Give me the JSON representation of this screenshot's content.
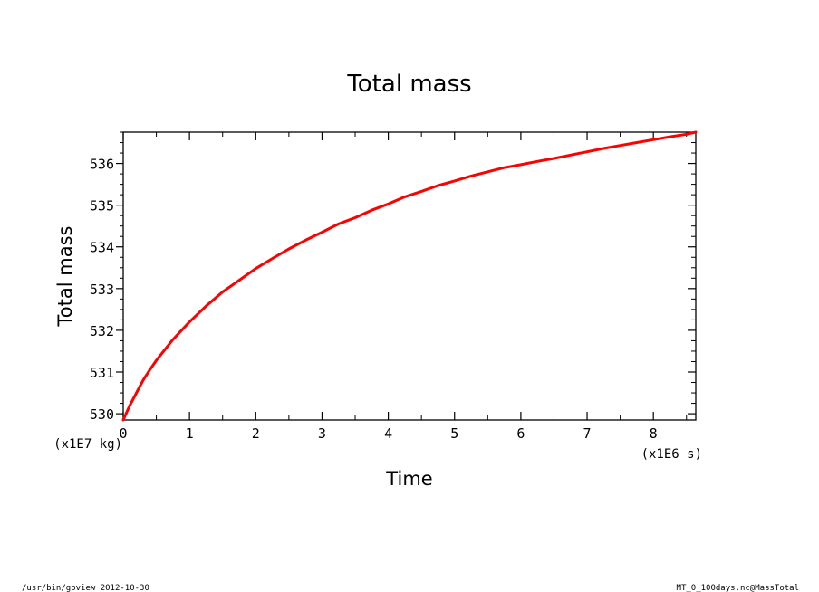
{
  "chart_data": {
    "type": "line",
    "title": "Total mass",
    "xlabel": "Time",
    "ylabel": "Total mass",
    "x_unit": "(x1E6 s)",
    "y_unit": "(x1E7 kg)",
    "xlim": [
      0,
      8.64
    ],
    "ylim": [
      529.85,
      536.75
    ],
    "x_ticks": [
      0,
      1,
      2,
      3,
      4,
      5,
      6,
      7,
      8
    ],
    "y_ticks": [
      530,
      531,
      532,
      533,
      534,
      535,
      536
    ],
    "x_minor_step": 0.5,
    "y_minor_step": 0.25,
    "grid": false,
    "series": [
      {
        "color": "#ff0000",
        "x": [
          0,
          0.1,
          0.2,
          0.3,
          0.4,
          0.5,
          0.75,
          1.0,
          1.25,
          1.5,
          1.75,
          2.0,
          2.25,
          2.5,
          2.75,
          3.0,
          3.25,
          3.5,
          3.75,
          4.0,
          4.25,
          4.5,
          4.75,
          5.0,
          5.25,
          5.5,
          5.75,
          6.0,
          6.25,
          6.5,
          6.75,
          7.0,
          7.25,
          7.5,
          7.75,
          8.0,
          8.25,
          8.5,
          8.64
        ],
        "y": [
          529.85,
          530.2,
          530.5,
          530.8,
          531.05,
          531.28,
          531.78,
          532.2,
          532.58,
          532.92,
          533.2,
          533.48,
          533.72,
          533.95,
          534.16,
          534.35,
          534.55,
          534.7,
          534.88,
          535.03,
          535.2,
          535.33,
          535.47,
          535.58,
          535.7,
          535.8,
          535.9,
          535.97,
          536.05,
          536.12,
          536.2,
          536.28,
          536.36,
          536.43,
          536.5,
          536.57,
          536.64,
          536.7,
          536.75
        ]
      }
    ]
  },
  "footer": {
    "left": "/usr/bin/gpview  2012-10-30",
    "right": "MT_0_100days.nc@MassTotal"
  }
}
